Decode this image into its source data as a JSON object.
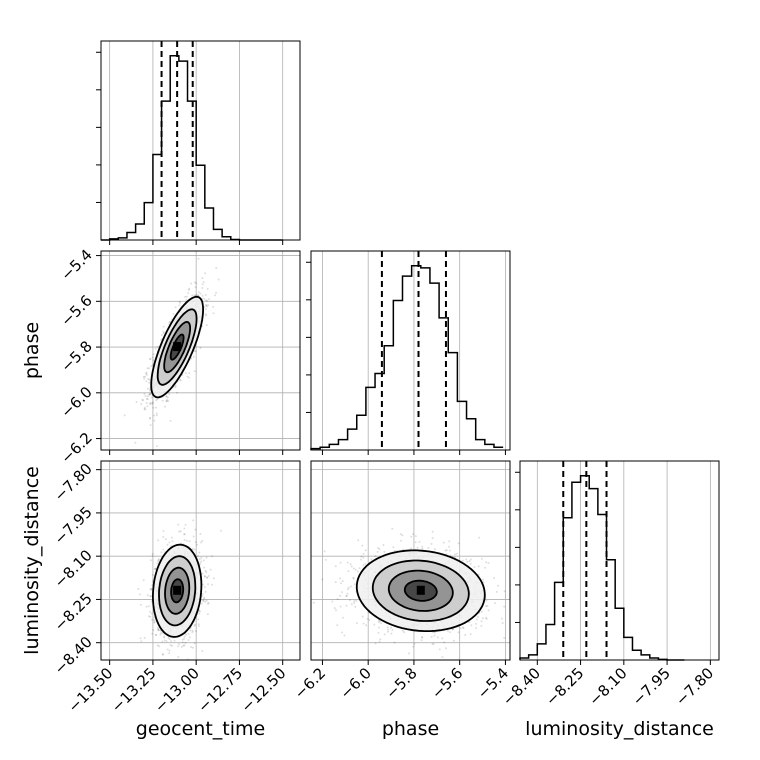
{
  "chart_data": {
    "type": "corner",
    "parameters": [
      {
        "id": "geocent_time",
        "label": "geocent_time",
        "range": [
          -13.55,
          -12.4
        ],
        "ticks": [
          -13.5,
          -13.25,
          -13.0,
          -12.75,
          -12.5
        ],
        "tick_labels": [
          "−13.50",
          "−13.25",
          "−13.00",
          "−12.75",
          "−12.50"
        ],
        "quantiles": [
          -13.2,
          -13.11,
          -13.02
        ],
        "median": -13.11
      },
      {
        "id": "phase",
        "label": "phase",
        "range": [
          -6.25,
          -5.38
        ],
        "ticks": [
          -6.2,
          -6.0,
          -5.8,
          -5.6,
          -5.4
        ],
        "tick_labels": [
          "−6.2",
          "−6.0",
          "−5.8",
          "−5.6",
          "−5.4"
        ],
        "quantiles": [
          -5.94,
          -5.78,
          -5.66
        ],
        "median": -5.78
      },
      {
        "id": "luminosity_distance",
        "label": "luminosity_distance",
        "range": [
          -8.46,
          -7.77
        ],
        "ticks": [
          -8.4,
          -8.25,
          -8.1,
          -7.95,
          -7.8
        ],
        "tick_labels": [
          "−8.40",
          "−8.25",
          "−8.10",
          "−7.95",
          "−7.80"
        ],
        "quantiles": [
          -8.31,
          -8.23,
          -8.16
        ],
        "median": -8.23
      }
    ],
    "histograms": [
      {
        "parameter": "geocent_time",
        "bin_edges": [
          -13.55,
          -13.5,
          -13.45,
          -13.4,
          -13.35,
          -13.3,
          -13.25,
          -13.2,
          -13.15,
          -13.1,
          -13.05,
          -13.0,
          -12.95,
          -12.9,
          -12.85,
          -12.8,
          -12.75,
          -12.7,
          -12.65,
          -12.6,
          -12.55,
          -12.5
        ],
        "counts": [
          0,
          2,
          4,
          14,
          30,
          70,
          160,
          260,
          345,
          335,
          260,
          140,
          60,
          20,
          6,
          1,
          0,
          0,
          0,
          0,
          0
        ]
      },
      {
        "parameter": "phase",
        "bin_edges": [
          -6.25,
          -6.21,
          -6.17,
          -6.13,
          -6.09,
          -6.05,
          -6.01,
          -5.97,
          -5.93,
          -5.89,
          -5.85,
          -5.81,
          -5.77,
          -5.73,
          -5.69,
          -5.65,
          -5.61,
          -5.57,
          -5.53,
          -5.49,
          -5.45,
          -5.41
        ],
        "counts": [
          2,
          4,
          8,
          15,
          30,
          50,
          90,
          110,
          150,
          215,
          250,
          265,
          262,
          240,
          190,
          140,
          70,
          45,
          15,
          8,
          4
        ]
      },
      {
        "parameter": "luminosity_distance",
        "bin_edges": [
          -8.46,
          -8.43,
          -8.4,
          -8.37,
          -8.34,
          -8.31,
          -8.28,
          -8.25,
          -8.22,
          -8.19,
          -8.16,
          -8.13,
          -8.1,
          -8.07,
          -8.04,
          -8.01,
          -7.98,
          -7.95,
          -7.92,
          -7.89
        ],
        "counts": [
          3,
          8,
          25,
          55,
          120,
          220,
          275,
          285,
          265,
          225,
          155,
          80,
          35,
          15,
          8,
          3,
          1,
          0,
          0
        ]
      }
    ],
    "contour_panels": [
      {
        "x": "geocent_time",
        "y": "phase",
        "center": [
          -13.11,
          -5.8
        ],
        "sigma": [
          0.075,
          0.11
        ],
        "corr": 0.75
      },
      {
        "x": "geocent_time",
        "y": "luminosity_distance",
        "center": [
          -13.11,
          -8.22
        ],
        "sigma": [
          0.07,
          0.08
        ],
        "corr": 0.12
      },
      {
        "x": "phase",
        "y": "luminosity_distance",
        "center": [
          -5.77,
          -8.22
        ],
        "sigma": [
          0.14,
          0.07
        ],
        "corr": -0.1
      }
    ],
    "contour_levels_sigma": [
      0.5,
      1.0,
      1.5,
      2.0
    ],
    "grid": true,
    "title": "",
    "legend": "none"
  }
}
